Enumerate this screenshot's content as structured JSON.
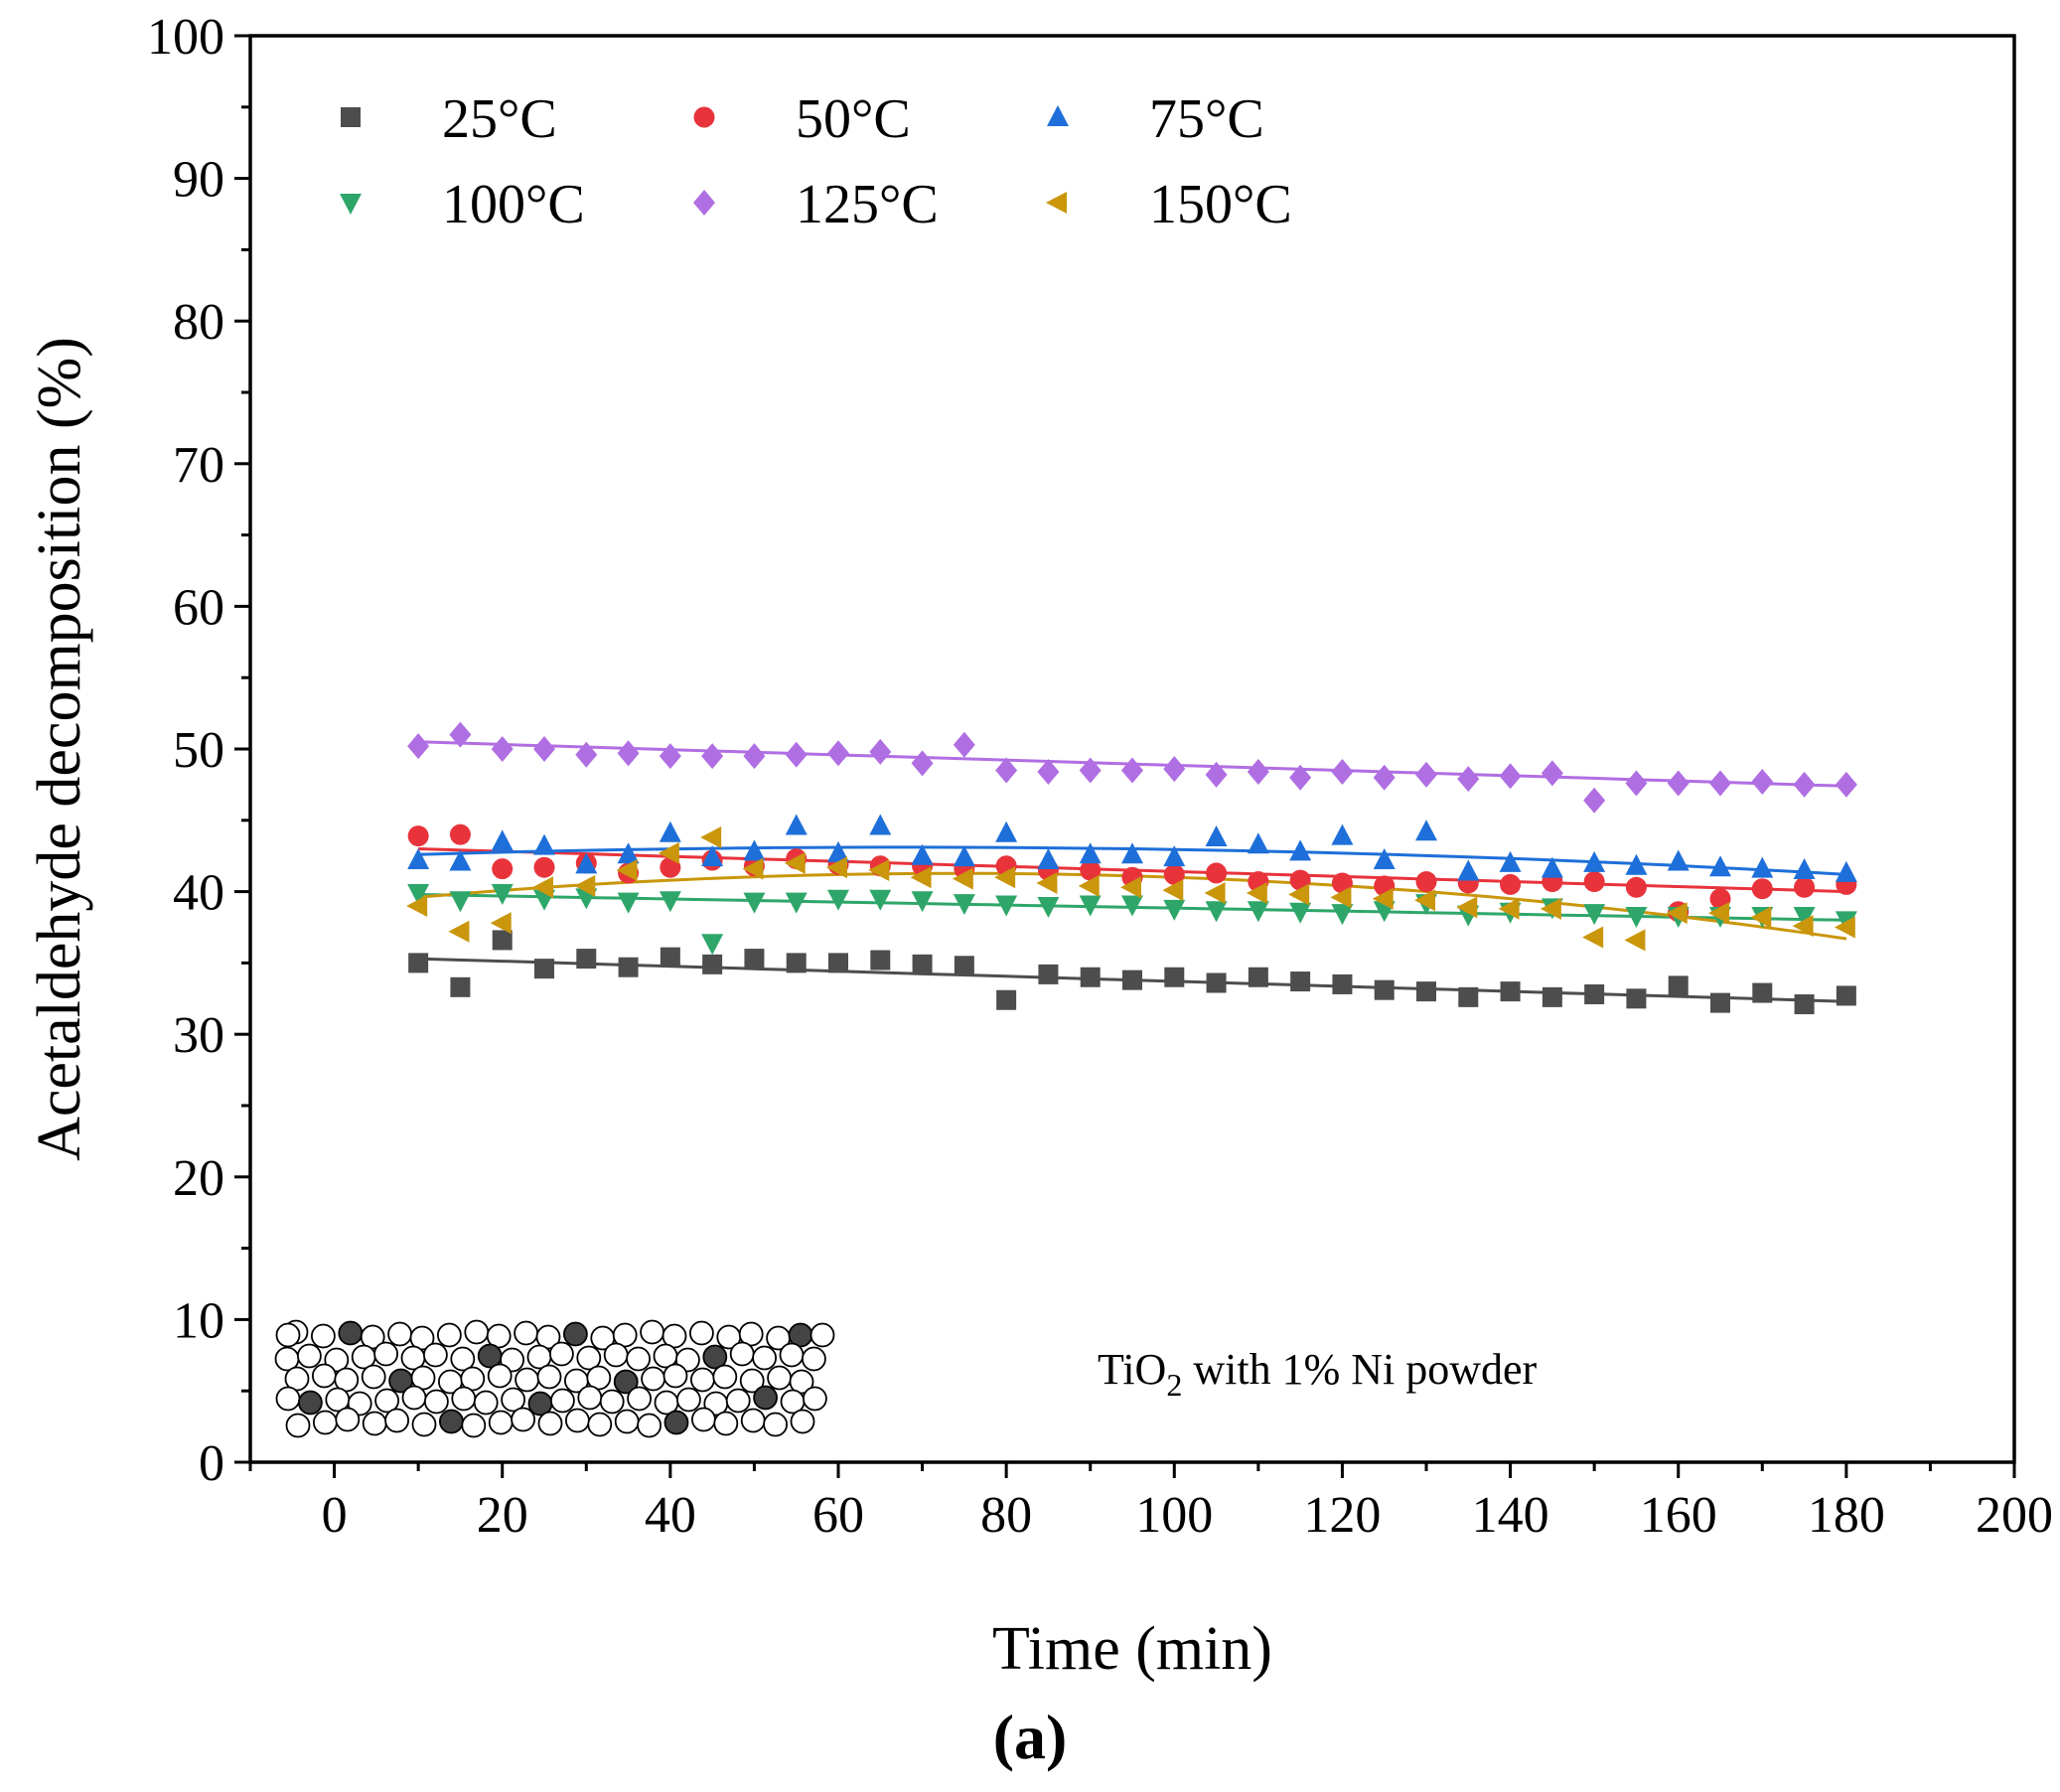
{
  "chart_data": {
    "type": "scatter",
    "xlabel": "Time (min)",
    "ylabel": "Acetaldehyde decomposition (%)",
    "xlim": [
      -10,
      200
    ],
    "ylim": [
      0,
      100
    ],
    "xticks": [
      0,
      20,
      40,
      60,
      80,
      100,
      120,
      140,
      160,
      180,
      200
    ],
    "yticks": [
      0,
      10,
      20,
      30,
      40,
      50,
      60,
      70,
      80,
      90,
      100
    ],
    "grid": false,
    "legend_position": "top-left",
    "panel_label": "(a)",
    "annotation": {
      "text_main": "TiO",
      "text_sub": "2",
      "text_rest": " with 1% Ni powder"
    },
    "x": [
      10,
      15,
      20,
      25,
      30,
      35,
      40,
      45,
      50,
      55,
      60,
      65,
      70,
      75,
      80,
      85,
      90,
      95,
      100,
      105,
      110,
      115,
      120,
      125,
      130,
      135,
      140,
      145,
      150,
      155,
      160,
      165,
      170,
      175,
      180
    ],
    "series": [
      {
        "name": "25°C",
        "color": "#4d4d4d",
        "marker": "square",
        "values": [
          35.0,
          33.3,
          36.6,
          34.6,
          35.3,
          34.7,
          35.4,
          34.9,
          35.3,
          35.0,
          35.0,
          35.2,
          34.9,
          34.8,
          32.4,
          34.2,
          34.0,
          33.8,
          34.0,
          33.6,
          34.0,
          33.7,
          33.5,
          33.1,
          33.0,
          32.6,
          33.0,
          32.6,
          32.8,
          32.5,
          33.4,
          32.2,
          32.9,
          32.1,
          32.7
        ],
        "fit": [
          35.3,
          32.3
        ]
      },
      {
        "name": "50°C",
        "color": "#e8333b",
        "marker": "circle",
        "values": [
          43.9,
          44.0,
          41.6,
          41.7,
          42.0,
          41.3,
          41.7,
          42.2,
          41.8,
          42.3,
          41.9,
          41.8,
          41.8,
          41.6,
          41.8,
          41.5,
          41.5,
          41.0,
          41.2,
          41.3,
          40.7,
          40.8,
          40.6,
          40.4,
          40.7,
          40.6,
          40.5,
          40.7,
          40.7,
          40.3,
          38.6,
          39.5,
          40.2,
          40.3,
          40.5
        ],
        "fit": [
          43.0,
          40.0
        ]
      },
      {
        "name": "75°C",
        "color": "#1e6fd9",
        "marker": "triangle-up",
        "values": [
          42.2,
          42.1,
          43.5,
          43.2,
          41.9,
          42.6,
          44.1,
          42.4,
          42.8,
          44.6,
          42.7,
          44.6,
          42.5,
          42.4,
          44.1,
          42.2,
          42.6,
          42.6,
          42.4,
          43.8,
          43.3,
          42.8,
          43.9,
          42.2,
          44.2,
          41.4,
          42.0,
          41.6,
          42.0,
          41.8,
          42.1,
          41.7,
          41.6,
          41.5,
          41.3
        ],
        "fit": [
          42.6,
          43.0,
          41.2
        ]
      },
      {
        "name": "100°C",
        "color": "#2ea66a",
        "marker": "triangle-down",
        "values": [
          39.9,
          39.4,
          39.9,
          39.5,
          39.6,
          39.3,
          39.4,
          36.4,
          39.3,
          39.3,
          39.5,
          39.5,
          39.4,
          39.2,
          39.1,
          39.0,
          39.1,
          39.1,
          38.8,
          38.7,
          38.7,
          38.6,
          38.5,
          38.7,
          39.2,
          38.4,
          38.6,
          38.9,
          38.5,
          38.3,
          38.3,
          38.3,
          38.3,
          38.3,
          38.0
        ],
        "fit": [
          39.8,
          38.0
        ]
      },
      {
        "name": "125°C",
        "color": "#b06ee3",
        "marker": "diamond",
        "values": [
          50.2,
          51.0,
          50.0,
          50.0,
          49.6,
          49.7,
          49.5,
          49.5,
          49.5,
          49.6,
          49.7,
          49.8,
          49.0,
          50.3,
          48.5,
          48.4,
          48.5,
          48.5,
          48.6,
          48.2,
          48.4,
          48.0,
          48.4,
          48.0,
          48.2,
          47.9,
          48.1,
          48.3,
          46.4,
          47.6,
          47.6,
          47.6,
          47.7,
          47.5,
          47.5
        ],
        "fit": [
          50.5,
          47.4
        ]
      },
      {
        "name": "150°C",
        "color": "#c9960c",
        "marker": "triangle-left",
        "values": [
          39.0,
          37.2,
          37.8,
          40.3,
          40.4,
          41.5,
          42.7,
          43.8,
          41.6,
          42.0,
          41.7,
          41.5,
          41.0,
          40.9,
          41.0,
          40.6,
          40.4,
          40.3,
          40.1,
          39.9,
          39.9,
          39.8,
          39.6,
          39.5,
          39.4,
          38.9,
          38.8,
          38.8,
          36.8,
          36.6,
          38.5,
          38.5,
          38.2,
          37.6,
          37.5
        ],
        "fit": [
          39.6,
          41.1,
          36.7
        ]
      }
    ]
  }
}
